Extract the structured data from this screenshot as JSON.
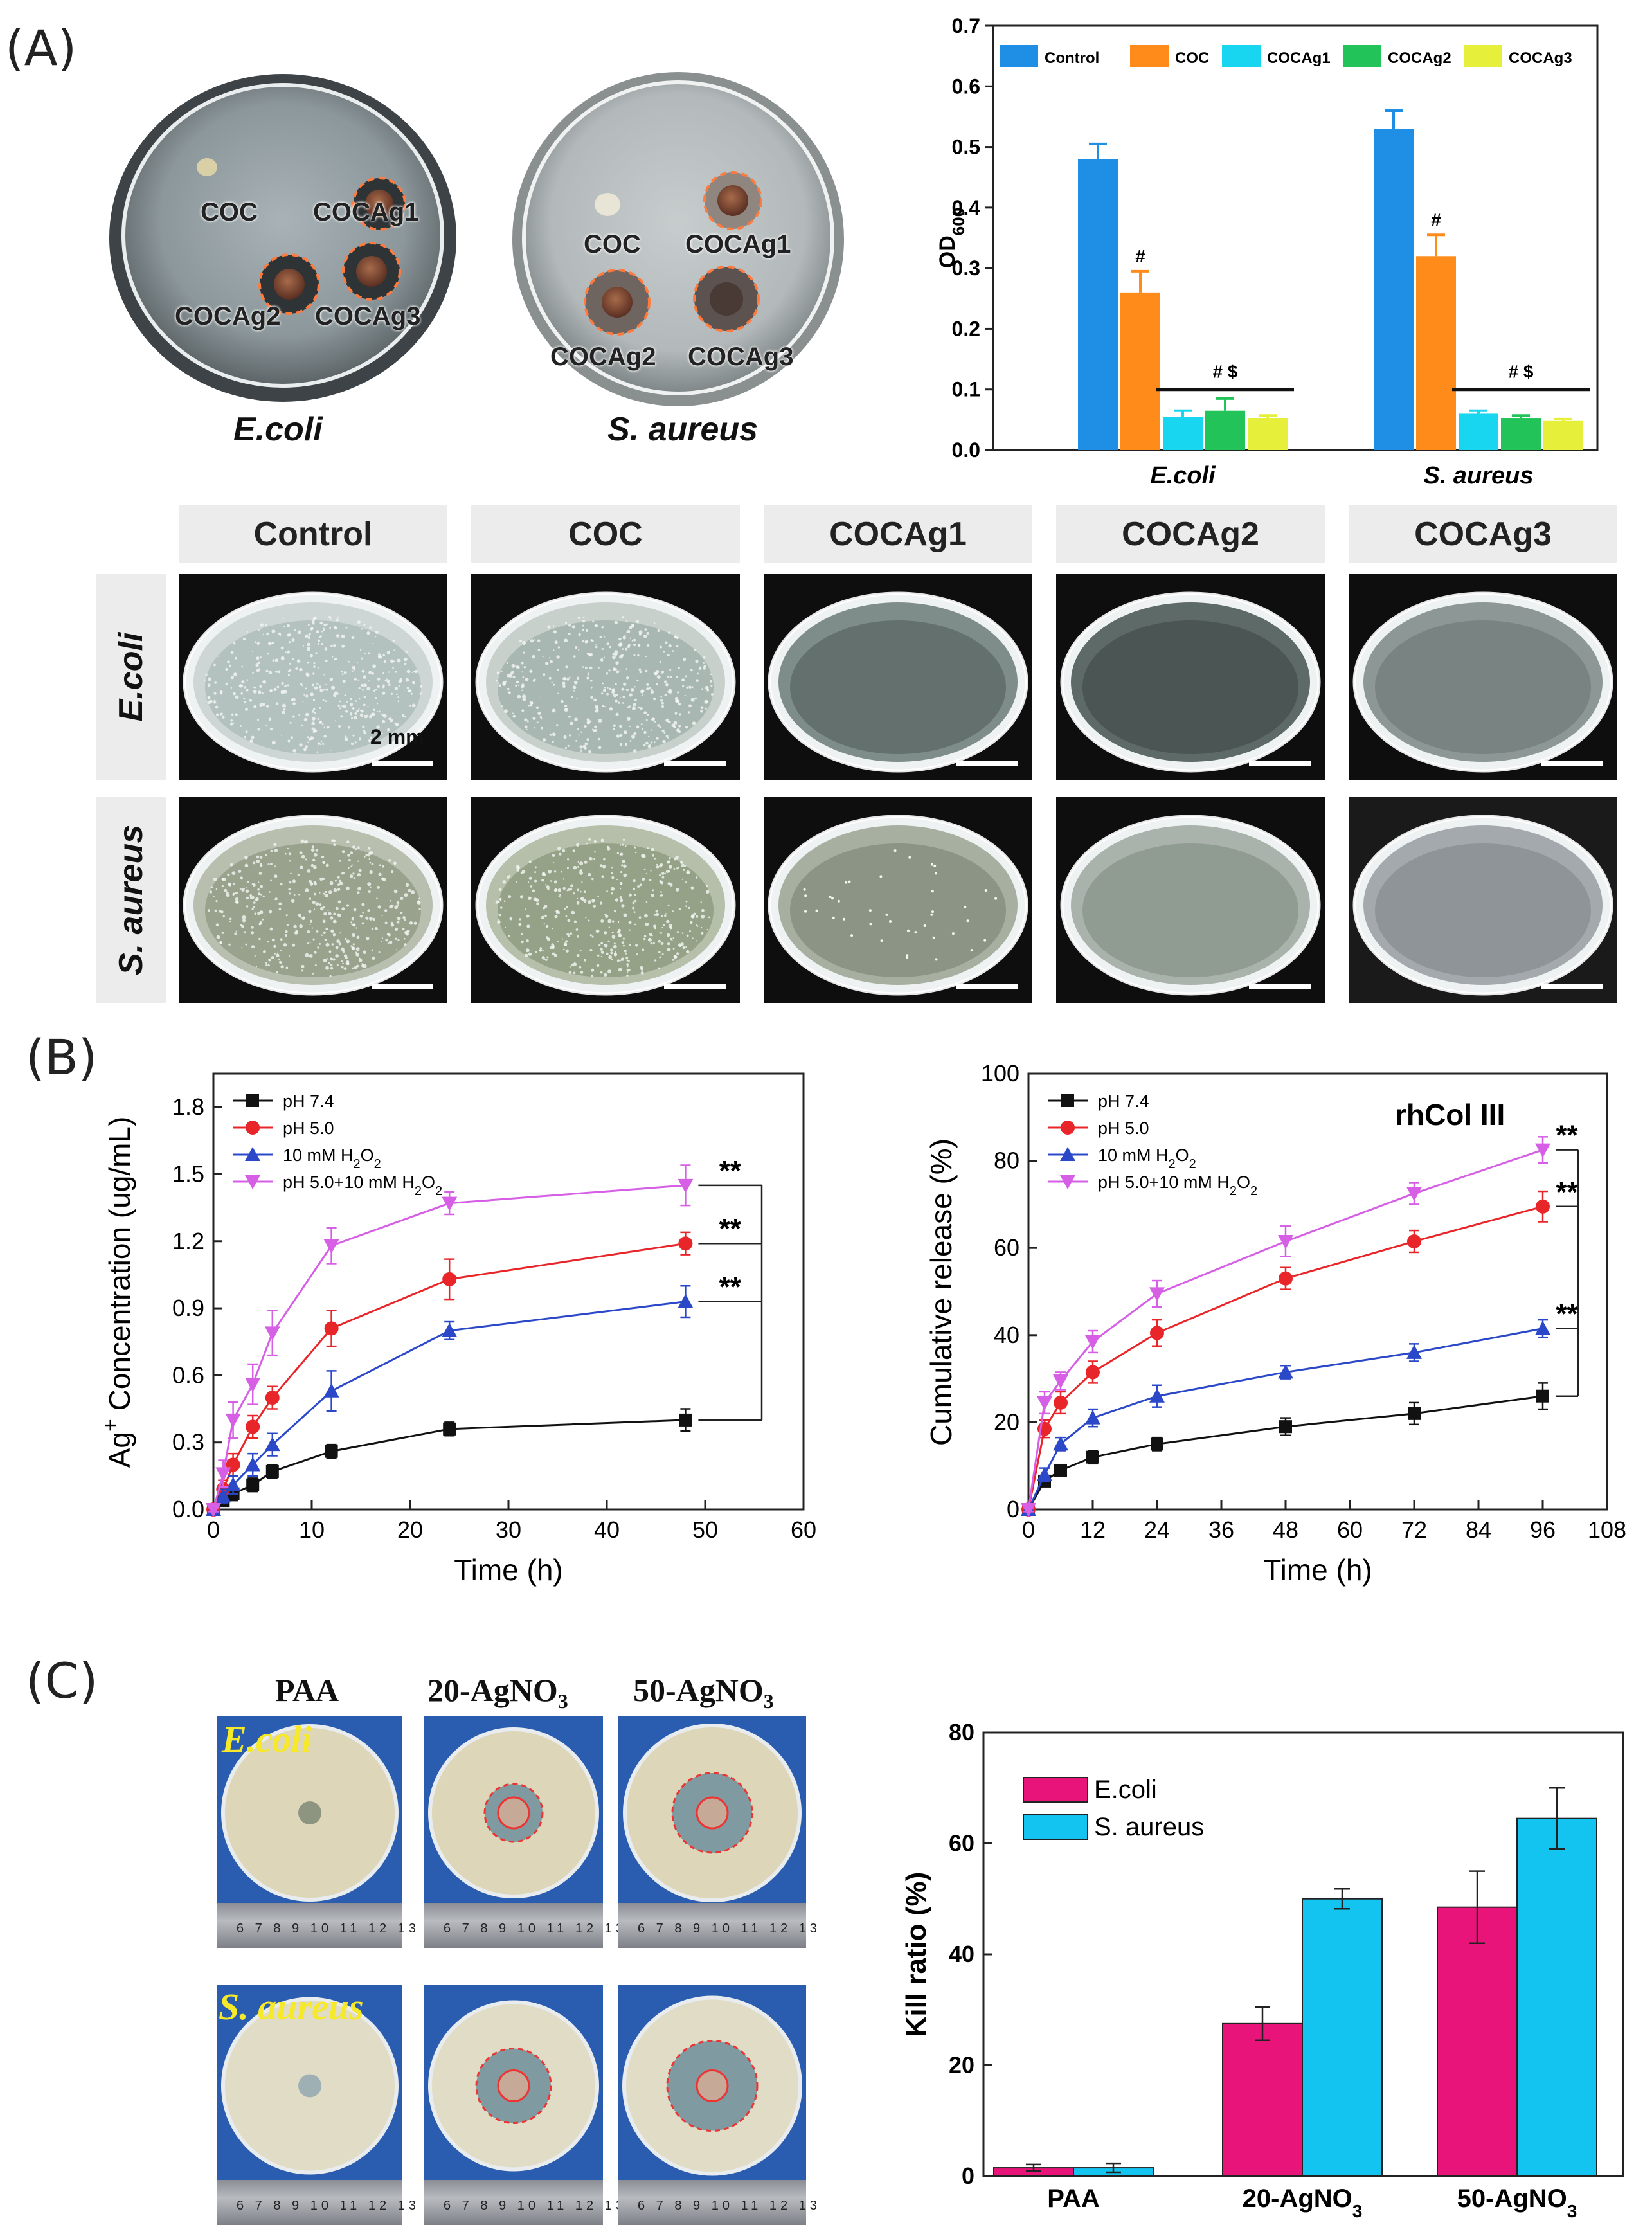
{
  "panel_labels": {
    "a": "(A)",
    "b": "(B)",
    "c": "(C)"
  },
  "panelA": {
    "plates": [
      {
        "species": "E.coli",
        "labels": [
          "COC",
          "COCAg1",
          "COCAg2",
          "COCAg3"
        ]
      },
      {
        "species": "S. aureus",
        "labels": [
          "COC",
          "COCAg1",
          "COCAg2",
          "COCAg3"
        ]
      }
    ],
    "grid": {
      "columns": [
        "Control",
        "COC",
        "COCAg1",
        "COCAg2",
        "COCAg3"
      ],
      "rows": [
        "E.coli",
        "S. aureus"
      ],
      "scale_label": "2 mm"
    }
  },
  "panelC": {
    "headers": [
      "PAA",
      "20-AgNO3",
      "50-AgNO3"
    ],
    "rows": [
      "E.coli",
      "S. aureus"
    ],
    "ruler_text": "6 7 8 9 10 11 12 13"
  },
  "colors": {
    "control": "#1f8fe6",
    "coc": "#ff8c1a",
    "cocag1": "#19d6f0",
    "cocag2": "#22c45a",
    "cocag3": "#e6f03a",
    "ph74": "#111111",
    "ph50": "#e8262a",
    "h2o2": "#2a48c8",
    "ph50h2o2": "#d65fe6",
    "ecoli_bar": "#e8147a",
    "saureus_bar": "#14c4f0"
  },
  "chart_data": [
    {
      "type": "bar",
      "ylabel": "OD600",
      "ylim": [
        0,
        0.7
      ],
      "yticks": [
        "0.0",
        "0.1",
        "0.2",
        "0.3",
        "0.4",
        "0.5",
        "0.6",
        "0.7"
      ],
      "categories": [
        "E.coli",
        "S. aureus"
      ],
      "series": [
        {
          "name": "Control",
          "values": [
            0.48,
            0.53
          ],
          "errors": [
            0.025,
            0.03
          ]
        },
        {
          "name": "COC",
          "values": [
            0.26,
            0.32
          ],
          "errors": [
            0.035,
            0.035
          ]
        },
        {
          "name": "COCAg1",
          "values": [
            0.055,
            0.06
          ],
          "errors": [
            0.01,
            0.005
          ]
        },
        {
          "name": "COCAg2",
          "values": [
            0.065,
            0.053
          ],
          "errors": [
            0.02,
            0.004
          ]
        },
        {
          "name": "COCAg3",
          "values": [
            0.053,
            0.048
          ],
          "errors": [
            0.004,
            0.003
          ]
        }
      ],
      "annotations": [
        "#",
        "# $"
      ],
      "legend": "top"
    },
    {
      "type": "line",
      "xlabel": "Time (h)",
      "ylabel": "Ag+ Concentration (ug/mL)",
      "xlim": [
        0,
        60
      ],
      "ylim": [
        0,
        1.95
      ],
      "xticks": [
        "0",
        "10",
        "20",
        "30",
        "40",
        "50",
        "60"
      ],
      "yticks": [
        "0.0",
        "0.3",
        "0.6",
        "0.9",
        "1.2",
        "1.5",
        "1.8"
      ],
      "x": [
        0,
        1,
        2,
        4,
        6,
        12,
        24,
        48
      ],
      "series": [
        {
          "name": "pH 7.4",
          "values": [
            0,
            0.04,
            0.07,
            0.11,
            0.17,
            0.26,
            0.36,
            0.4
          ],
          "errors": [
            0.01,
            0.02,
            0.03,
            0.03,
            0.03,
            0.03,
            0.03,
            0.05
          ]
        },
        {
          "name": "pH 5.0",
          "values": [
            0,
            0.09,
            0.2,
            0.37,
            0.5,
            0.81,
            1.03,
            1.19
          ],
          "errors": [
            0.01,
            0.04,
            0.05,
            0.05,
            0.05,
            0.08,
            0.09,
            0.05
          ]
        },
        {
          "name": "10 mM H2O2",
          "values": [
            0,
            0.06,
            0.11,
            0.2,
            0.29,
            0.53,
            0.8,
            0.93
          ],
          "errors": [
            0.01,
            0.03,
            0.04,
            0.05,
            0.05,
            0.09,
            0.04,
            0.07
          ]
        },
        {
          "name": "pH 5.0+10 mM H2O2",
          "values": [
            0,
            0.16,
            0.4,
            0.56,
            0.79,
            1.18,
            1.37,
            1.45
          ],
          "errors": [
            0.01,
            0.06,
            0.08,
            0.09,
            0.1,
            0.08,
            0.05,
            0.09
          ]
        }
      ],
      "annotations": [
        "**",
        "**",
        "**"
      ],
      "legend": "top-left"
    },
    {
      "type": "line",
      "title": "rhCol III",
      "xlabel": "Time (h)",
      "ylabel": "Cumulative release (%)",
      "xlim": [
        0,
        108
      ],
      "ylim": [
        0,
        100
      ],
      "xticks": [
        "0",
        "12",
        "24",
        "36",
        "48",
        "60",
        "72",
        "84",
        "96",
        "108"
      ],
      "yticks": [
        "0",
        "20",
        "40",
        "60",
        "80",
        "100"
      ],
      "x": [
        0,
        3,
        6,
        12,
        24,
        48,
        72,
        96
      ],
      "series": [
        {
          "name": "pH 7.4",
          "values": [
            0,
            6.5,
            9,
            12,
            15,
            19,
            22,
            26
          ],
          "errors": [
            0.5,
            1,
            1,
            1.5,
            1.5,
            2,
            2.5,
            3
          ]
        },
        {
          "name": "pH 5.0",
          "values": [
            0,
            18.5,
            24.5,
            31.5,
            40.5,
            53,
            61.5,
            69.5
          ],
          "errors": [
            0.5,
            2,
            2.5,
            2.5,
            3,
            2.5,
            2.5,
            3.5
          ]
        },
        {
          "name": "10 mM H2O2",
          "values": [
            0,
            8,
            15,
            21,
            26,
            31.5,
            36,
            41.5
          ],
          "errors": [
            0.5,
            1.5,
            1.5,
            2,
            2.5,
            1.5,
            2,
            2
          ]
        },
        {
          "name": "pH 5.0+10 mM H2O2",
          "values": [
            0,
            24.5,
            29.5,
            38.5,
            49.5,
            61.5,
            72.5,
            82.5
          ],
          "errors": [
            0.5,
            2.5,
            2,
            2.5,
            3,
            3.5,
            2.5,
            3
          ]
        }
      ],
      "annotations": [
        "**",
        "**",
        "**"
      ],
      "legend": "top-left"
    },
    {
      "type": "bar",
      "ylabel": "Kill ratio (%)",
      "ylim": [
        0,
        80
      ],
      "yticks": [
        "0",
        "20",
        "40",
        "60",
        "80"
      ],
      "categories": [
        "PAA",
        "20-AgNO3",
        "50-AgNO3"
      ],
      "series": [
        {
          "name": "E.coli",
          "values": [
            1.5,
            27.5,
            48.5
          ],
          "errors": [
            0.6,
            3,
            6.5
          ]
        },
        {
          "name": "S. aureus",
          "values": [
            1.5,
            50,
            64.5
          ],
          "errors": [
            0.8,
            1.8,
            5.5
          ]
        }
      ],
      "legend": "top-left"
    }
  ]
}
